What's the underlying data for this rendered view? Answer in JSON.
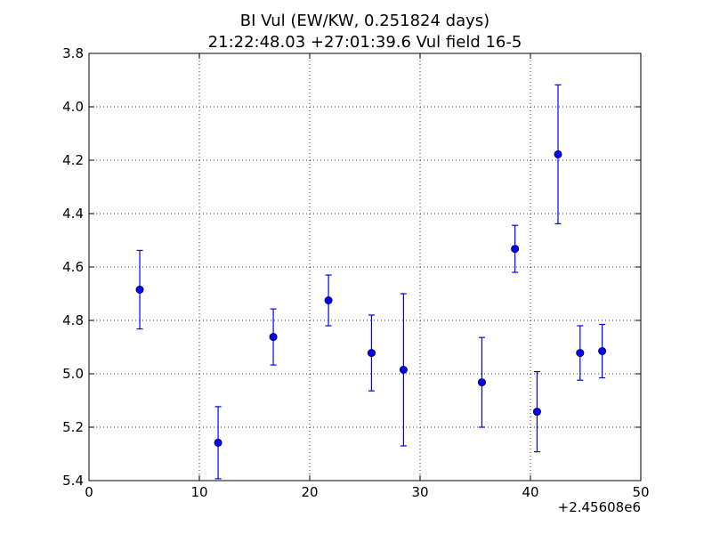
{
  "chart_data": {
    "type": "scatter",
    "title_line1": "BI Vul (EW/KW, 0.251824 days)",
    "title_line2": "21:22:48.03 +27:01:39.6 Vul field 16-5",
    "xlabel": "",
    "ylabel": "",
    "x_offset_label": "+2.45608e6",
    "xlim": [
      0,
      50
    ],
    "ylim": [
      5.4,
      3.8
    ],
    "y_inverted": true,
    "grid": true,
    "x_ticks": [
      "0",
      "10",
      "20",
      "30",
      "40",
      "50"
    ],
    "y_ticks": [
      "3.8",
      "4.0",
      "4.2",
      "4.4",
      "4.6",
      "4.8",
      "5.0",
      "5.2",
      "5.4"
    ],
    "marker_color": "#0000ff",
    "points": [
      {
        "x": 4.6,
        "y": 4.685,
        "err": 0.147
      },
      {
        "x": 11.7,
        "y": 5.258,
        "err": 0.135
      },
      {
        "x": 16.7,
        "y": 4.862,
        "err": 0.105
      },
      {
        "x": 21.7,
        "y": 4.725,
        "err": 0.095
      },
      {
        "x": 25.6,
        "y": 4.922,
        "err": 0.142
      },
      {
        "x": 28.5,
        "y": 4.985,
        "err": 0.285
      },
      {
        "x": 35.6,
        "y": 5.032,
        "err": 0.168
      },
      {
        "x": 38.6,
        "y": 4.532,
        "err": 0.088
      },
      {
        "x": 40.6,
        "y": 5.142,
        "err": 0.15
      },
      {
        "x": 42.5,
        "y": 4.178,
        "err": 0.26
      },
      {
        "x": 44.5,
        "y": 4.922,
        "err": 0.102
      },
      {
        "x": 46.5,
        "y": 4.915,
        "err": 0.1
      }
    ]
  }
}
